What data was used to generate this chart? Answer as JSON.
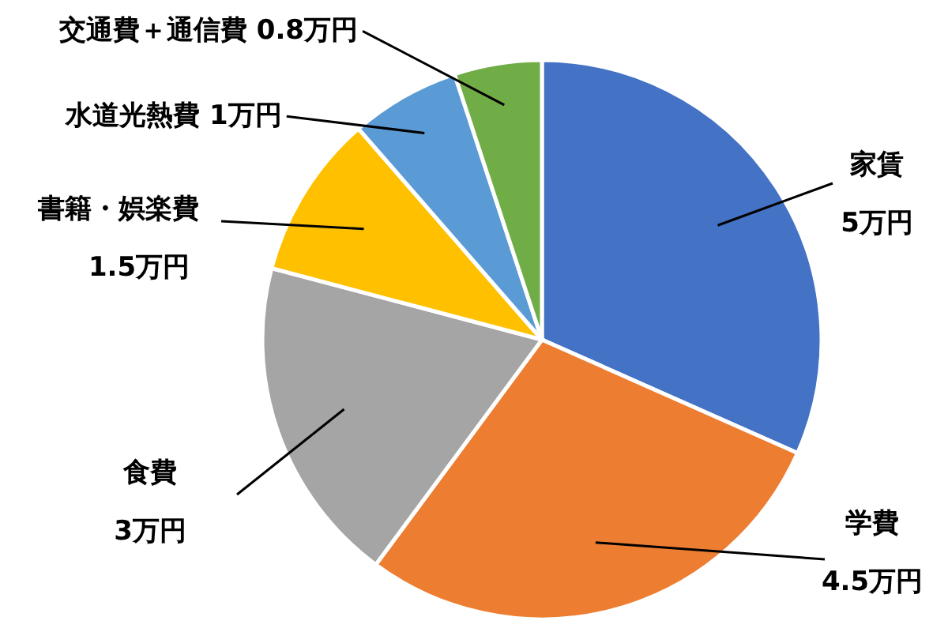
{
  "chart_data": {
    "type": "pie",
    "categories": [
      "家賃",
      "学費",
      "食費",
      "書籍・娯楽費",
      "水道光熱費",
      "交通費＋通信費"
    ],
    "values": [
      5,
      4.5,
      3,
      1.5,
      1,
      0.8
    ],
    "value_labels": [
      "5万円",
      "4.5万円",
      "3万円",
      "1.5万円",
      "1万円",
      "0.8万円"
    ],
    "colors": [
      "#4472c4",
      "#ed7d31",
      "#a5a5a5",
      "#ffc000",
      "#5b9bd5",
      "#70ad47"
    ],
    "legend": false
  }
}
